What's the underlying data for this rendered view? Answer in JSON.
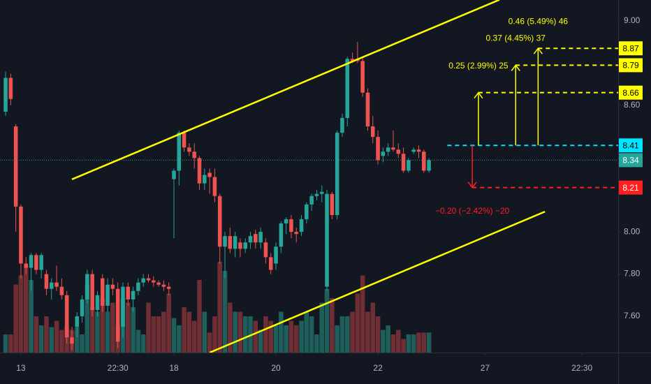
{
  "chart_data": {
    "type": "candlestick",
    "up_color": "#26a69a",
    "down_color": "#ef5350",
    "volume_up_color": "#1f5f5b",
    "volume_down_color": "#6e2e33",
    "open": [
      8.57,
      8.73,
      8.5,
      8.12,
      7.85,
      7.83,
      7.89,
      7.82,
      7.8,
      7.73,
      7.76,
      7.74,
      7.7,
      7.5,
      7.55,
      7.6,
      7.68,
      7.8,
      7.63,
      7.78,
      7.65,
      7.75,
      7.73,
      7.55,
      7.74,
      7.68,
      7.72,
      7.76,
      7.78,
      7.77,
      7.76,
      7.75,
      7.74,
      8.25,
      8.29,
      8.47,
      8.4,
      8.38,
      8.35,
      8.23,
      8.28,
      8.26,
      8.17,
      7.93,
      7.98,
      7.92,
      7.95,
      7.92,
      7.95,
      7.99,
      7.95,
      7.95,
      7.88,
      7.85,
      7.93,
      8.04,
      8.06,
      8.0,
      8.0,
      8.06,
      8.13,
      8.17,
      8.18,
      7.74,
      8.18,
      8.08,
      8.47,
      8.54,
      8.82,
      8.82,
      8.81,
      8.66,
      8.5,
      8.45,
      8.36,
      8.38,
      8.4,
      8.39,
      8.37,
      8.29,
      8.38,
      8.39,
      8.38,
      8.29
    ],
    "high": [
      8.76,
      8.75,
      8.51,
      8.13,
      7.88,
      7.9,
      7.9,
      7.9,
      7.82,
      7.78,
      7.84,
      7.78,
      7.72,
      7.55,
      7.62,
      7.7,
      7.82,
      7.82,
      7.72,
      7.8,
      7.78,
      7.78,
      7.76,
      7.76,
      7.76,
      7.74,
      7.78,
      7.8,
      7.8,
      7.79,
      7.77,
      7.77,
      7.76,
      8.3,
      8.48,
      8.48,
      8.42,
      8.42,
      8.36,
      8.3,
      8.3,
      8.3,
      8.18,
      8.0,
      8.02,
      8.0,
      7.97,
      7.97,
      8.0,
      8.01,
      8.02,
      7.97,
      7.9,
      7.95,
      8.05,
      8.07,
      8.08,
      8.02,
      8.08,
      8.14,
      8.18,
      8.2,
      8.22,
      8.2,
      8.19,
      8.48,
      8.56,
      8.83,
      8.85,
      8.9,
      8.83,
      8.68,
      8.55,
      8.48,
      8.4,
      8.42,
      8.48,
      8.42,
      8.4,
      8.35,
      8.4,
      8.41,
      8.39,
      8.35
    ],
    "low": [
      8.55,
      8.6,
      8.0,
      7.78,
      7.8,
      7.72,
      7.8,
      7.78,
      7.7,
      7.68,
      7.72,
      7.68,
      7.47,
      7.44,
      7.5,
      7.57,
      7.66,
      7.6,
      7.6,
      7.62,
      7.62,
      7.7,
      7.45,
      7.5,
      7.65,
      7.62,
      7.7,
      7.74,
      7.76,
      7.74,
      7.74,
      7.72,
      7.7,
      7.97,
      8.22,
      8.38,
      8.36,
      8.3,
      8.2,
      8.2,
      8.18,
      8.14,
      7.85,
      7.78,
      7.9,
      7.88,
      7.88,
      7.9,
      7.92,
      7.92,
      7.92,
      7.85,
      7.8,
      7.82,
      7.9,
      7.99,
      7.97,
      7.95,
      7.98,
      8.04,
      8.1,
      8.15,
      8.14,
      7.72,
      8.06,
      8.06,
      8.45,
      8.5,
      8.8,
      8.8,
      8.64,
      8.48,
      8.42,
      8.32,
      8.33,
      8.36,
      8.38,
      8.35,
      8.28,
      8.28,
      8.37,
      8.35,
      8.28,
      8.28
    ],
    "close": [
      8.73,
      8.63,
      8.12,
      7.85,
      7.83,
      7.89,
      7.82,
      7.89,
      7.73,
      7.76,
      7.74,
      7.7,
      7.5,
      7.47,
      7.6,
      7.68,
      7.8,
      7.63,
      7.7,
      7.65,
      7.75,
      7.73,
      7.48,
      7.74,
      7.68,
      7.72,
      7.76,
      7.78,
      7.77,
      7.76,
      7.75,
      7.74,
      7.73,
      8.29,
      8.47,
      8.4,
      8.38,
      8.35,
      8.23,
      8.27,
      8.26,
      8.17,
      7.93,
      7.98,
      7.92,
      7.98,
      7.92,
      7.95,
      7.98,
      7.95,
      8.0,
      7.88,
      7.82,
      7.93,
      8.04,
      8.06,
      8.0,
      7.99,
      8.06,
      8.13,
      8.17,
      8.18,
      8.19,
      8.18,
      8.08,
      8.47,
      8.54,
      8.82,
      8.81,
      8.81,
      8.66,
      8.5,
      8.45,
      8.34,
      8.38,
      8.4,
      8.39,
      8.37,
      8.29,
      8.34,
      8.39,
      8.38,
      8.29,
      8.34
    ],
    "volume": [
      20,
      20,
      75,
      85,
      95,
      80,
      40,
      30,
      40,
      28,
      35,
      25,
      30,
      25,
      28,
      20,
      75,
      50,
      45,
      60,
      45,
      55,
      30,
      60,
      55,
      50,
      25,
      20,
      55,
      40,
      40,
      45,
      65,
      38,
      30,
      50,
      45,
      35,
      80,
      45,
      22,
      40,
      100,
      90,
      55,
      45,
      45,
      40,
      40,
      35,
      25,
      40,
      35,
      30,
      45,
      30,
      35,
      30,
      35,
      45,
      40,
      20,
      55,
      70,
      60,
      30,
      40,
      40,
      45,
      65,
      85,
      45,
      55,
      40,
      25,
      30,
      20,
      25,
      15,
      20,
      20,
      22,
      22,
      22
    ],
    "xlim": [
      -1.1,
      120.1
    ],
    "xticks": [
      {
        "value": 3,
        "label": "13"
      },
      {
        "value": 22,
        "label": "22:30"
      },
      {
        "value": 33,
        "label": "18"
      },
      {
        "value": 53,
        "label": "20"
      },
      {
        "value": 73,
        "label": "22"
      },
      {
        "value": 94,
        "label": "27"
      },
      {
        "value": 113,
        "label": "22:30"
      }
    ],
    "ylim": [
      7.428,
      9.099
    ],
    "yticks": [
      {
        "value": 9,
        "label": "9.00"
      },
      {
        "value": 8.6,
        "label": "8.60"
      },
      {
        "value": 8,
        "label": "8.00"
      },
      {
        "value": 7.8,
        "label": "7.80"
      },
      {
        "value": 7.6,
        "label": "7.60"
      }
    ],
    "trendlines": [
      {
        "color": "#ffff00",
        "points": [
          [
            13,
            8.249
          ],
          [
            96.8,
            9.1
          ]
        ]
      },
      {
        "color": "#ffff00",
        "points": [
          [
            40,
            7.428
          ],
          [
            105.75,
            8.096
          ]
        ]
      }
    ],
    "base": {
      "value": 8.41,
      "start": 86.6,
      "color": "#00e5ff"
    },
    "measures": [
      {
        "to": 8.87,
        "at": 104.4,
        "color": "#ffff00",
        "label": "0.46 (5.49%) 46"
      },
      {
        "to": 8.79,
        "at": 100,
        "color": "#ffff00",
        "label": "0.37 (4.45%) 37"
      },
      {
        "to": 8.66,
        "at": 92.7,
        "color": "#ffff00",
        "label": "0.25 (2.99%) 25"
      },
      {
        "to": 8.21,
        "at": 91.5,
        "color": "#ff1f1f",
        "label": "−0.20 (−2.42%) −20"
      }
    ]
  }
}
